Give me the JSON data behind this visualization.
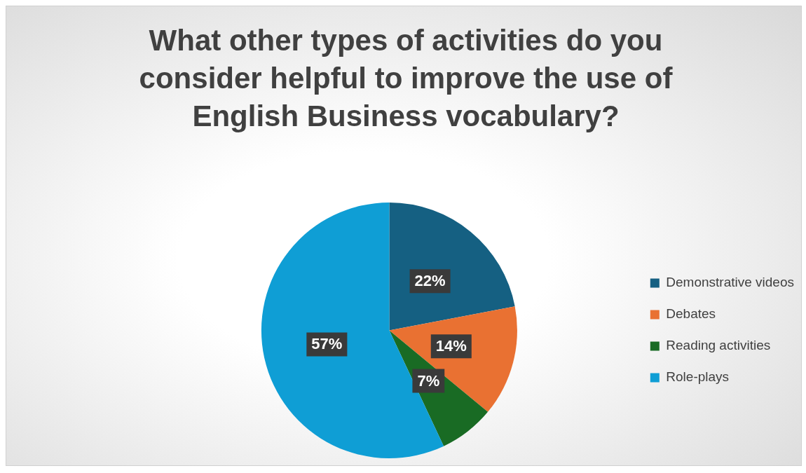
{
  "chart_data": {
    "type": "pie",
    "title": "What other types of activities do you consider helpful to improve the use of English Business vocabulary?",
    "categories": [
      "Demonstrative videos",
      "Debates",
      "Reading activities",
      "Role-plays"
    ],
    "values": [
      22,
      14,
      7,
      57
    ],
    "colors": [
      "#156082",
      "#e97132",
      "#196b24",
      "#0f9ed5"
    ],
    "value_labels": [
      "22%",
      "14%",
      "7%",
      "57%"
    ],
    "legend": "right"
  }
}
